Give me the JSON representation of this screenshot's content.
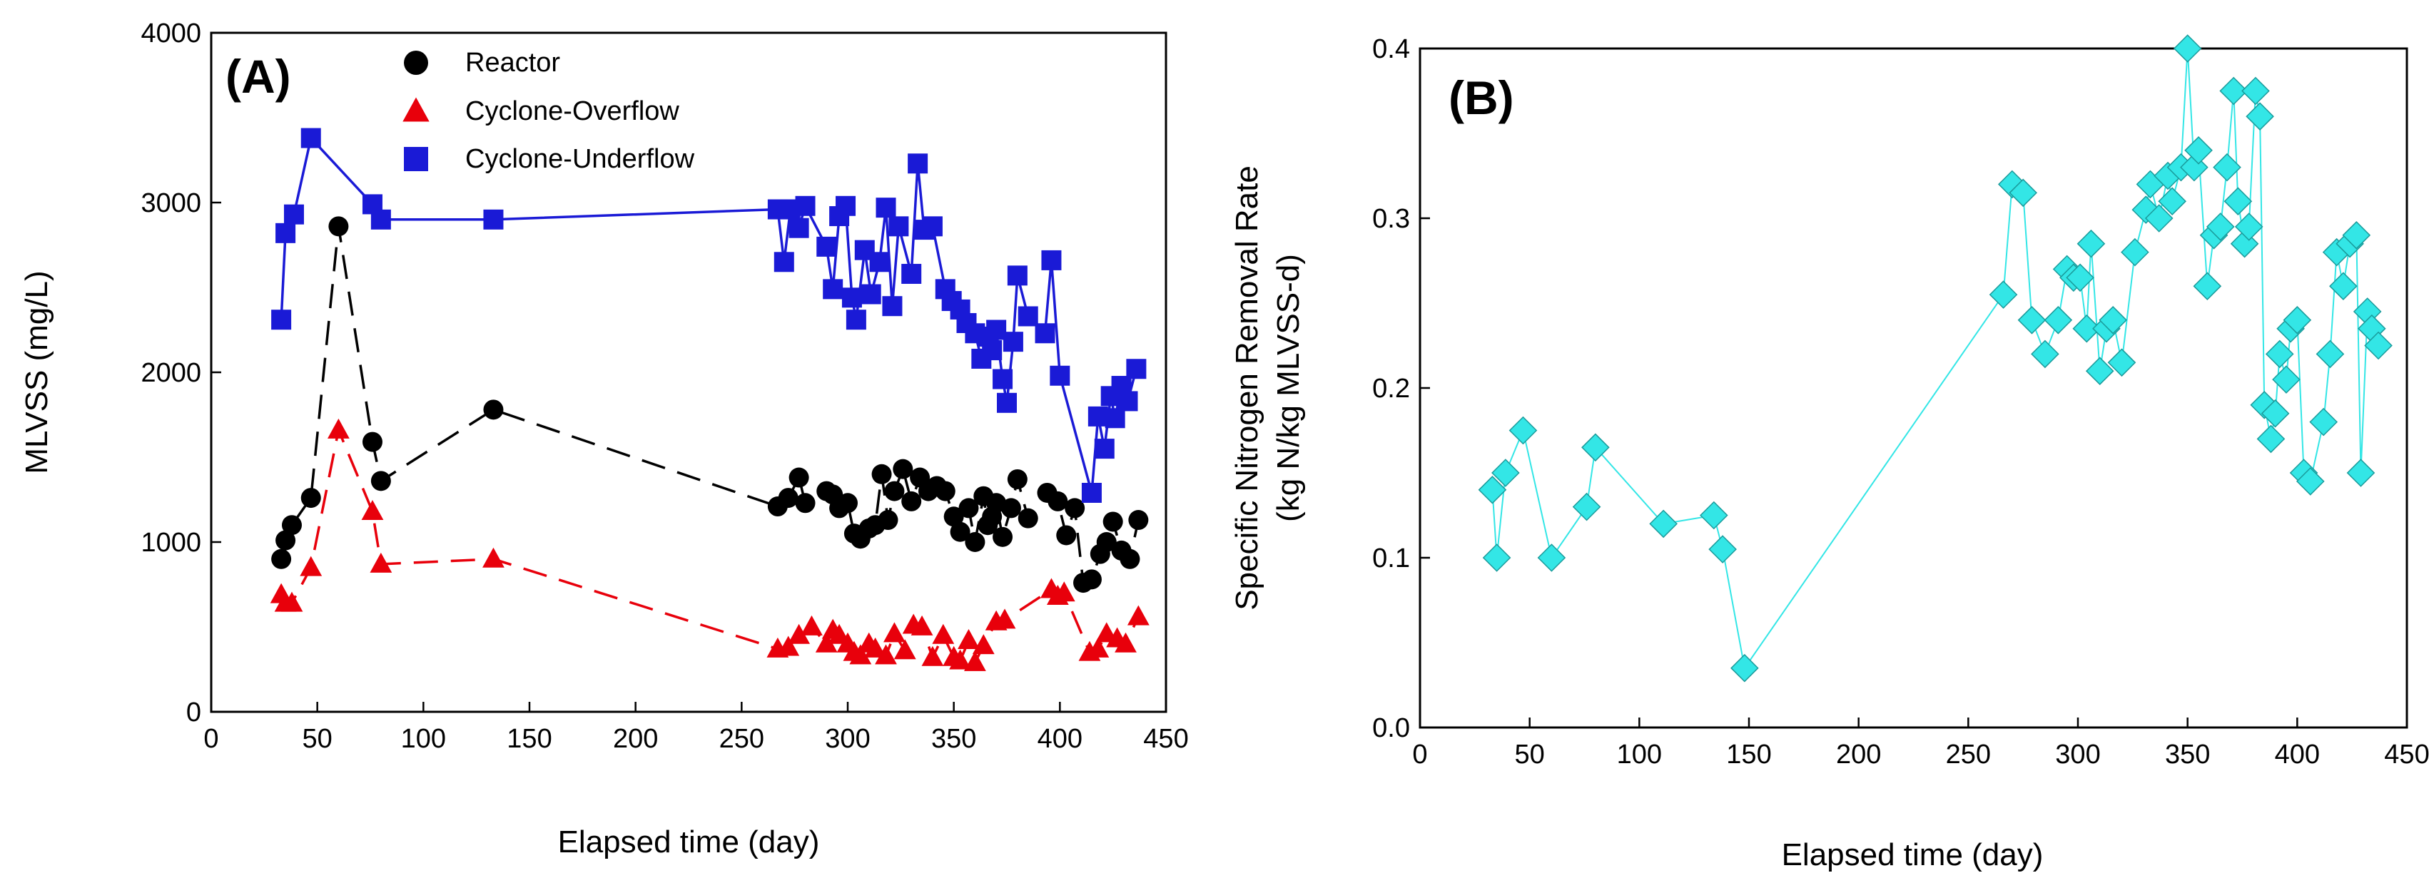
{
  "chart_data": [
    {
      "type": "scatter",
      "panel_label": "(A)",
      "xlabel": "Elapsed time (day)",
      "ylabel": "MLVSS (mg/L)",
      "xlim": [
        0,
        450
      ],
      "ylim": [
        0,
        4000
      ],
      "xticks": [
        0,
        50,
        100,
        150,
        200,
        250,
        300,
        350,
        400,
        450
      ],
      "yticks": [
        0,
        1000,
        2000,
        3000,
        4000
      ],
      "legend_position": "top-center",
      "series": [
        {
          "name": "Reactor",
          "marker": "circle",
          "color": "#000000",
          "line_style": "dashed",
          "x": [
            33,
            35,
            38,
            47,
            60,
            76,
            80,
            133,
            267,
            272,
            277,
            280,
            290,
            293,
            296,
            300,
            303,
            306,
            310,
            313,
            316,
            319,
            322,
            326,
            330,
            334,
            338,
            342,
            346,
            350,
            353,
            357,
            360,
            364,
            366,
            368,
            370,
            373,
            377,
            380,
            385,
            394,
            399,
            403,
            407,
            411,
            415,
            419,
            422,
            425,
            429,
            433,
            437
          ],
          "y": [
            900,
            1010,
            1100,
            1260,
            2860,
            1590,
            1360,
            1780,
            1210,
            1260,
            1380,
            1230,
            1300,
            1280,
            1200,
            1230,
            1050,
            1020,
            1080,
            1100,
            1400,
            1130,
            1300,
            1430,
            1240,
            1380,
            1300,
            1330,
            1300,
            1150,
            1060,
            1200,
            1000,
            1270,
            1100,
            1150,
            1230,
            1030,
            1200,
            1370,
            1140,
            1290,
            1240,
            1040,
            1200,
            760,
            780,
            930,
            1000,
            1120,
            950,
            900,
            1130
          ]
        },
        {
          "name": "Cyclone-Overflow",
          "marker": "triangle",
          "color": "#e8000b",
          "line_style": "dashed",
          "x": [
            33,
            35,
            38,
            47,
            60,
            76,
            80,
            133,
            267,
            272,
            277,
            283,
            290,
            293,
            296,
            300,
            303,
            306,
            310,
            313,
            318,
            322,
            327,
            331,
            335,
            340,
            345,
            350,
            353,
            357,
            360,
            364,
            370,
            374,
            396,
            399,
            402,
            414,
            418,
            422,
            427,
            431,
            437
          ],
          "y": [
            690,
            640,
            640,
            850,
            1660,
            1180,
            870,
            900,
            370,
            380,
            450,
            500,
            400,
            480,
            450,
            400,
            350,
            330,
            400,
            370,
            330,
            460,
            360,
            510,
            500,
            320,
            450,
            320,
            300,
            420,
            290,
            390,
            530,
            540,
            720,
            680,
            700,
            350,
            370,
            460,
            430,
            400,
            560
          ]
        },
        {
          "name": "Cyclone-Underflow",
          "marker": "square",
          "color": "#1a1ad6",
          "line_style": "solid",
          "x": [
            33,
            35,
            39,
            47,
            76,
            80,
            133,
            267,
            270,
            273,
            277,
            280,
            290,
            293,
            296,
            299,
            302,
            304,
            308,
            311,
            315,
            318,
            321,
            324,
            330,
            333,
            336,
            340,
            346,
            349,
            353,
            356,
            360,
            363,
            366,
            368,
            370,
            373,
            375,
            378,
            380,
            385,
            393,
            396,
            400,
            415,
            418,
            421,
            424,
            426,
            429,
            432,
            436
          ],
          "y": [
            2310,
            2820,
            2930,
            3380,
            2990,
            2900,
            2900,
            2960,
            2650,
            2960,
            2850,
            2980,
            2740,
            2490,
            2920,
            2980,
            2440,
            2310,
            2720,
            2460,
            2650,
            2970,
            2390,
            2860,
            2580,
            3230,
            2840,
            2860,
            2490,
            2420,
            2370,
            2290,
            2230,
            2080,
            2210,
            2130,
            2250,
            1960,
            1820,
            2180,
            2570,
            2330,
            2230,
            2660,
            1980,
            1290,
            1740,
            1550,
            1860,
            1730,
            1920,
            1830,
            2020
          ]
        }
      ]
    },
    {
      "type": "scatter",
      "panel_label": "(B)",
      "xlabel": "Elapsed time (day)",
      "ylabel_line1": "Specific Nitrogen Removal Rate",
      "ylabel_line2": "(kg N/kg MLVSS-d)",
      "xlim": [
        0,
        450
      ],
      "ylim": [
        0.0,
        0.4
      ],
      "xticks": [
        0,
        50,
        100,
        150,
        200,
        250,
        300,
        350,
        400,
        450
      ],
      "yticks": [
        "0.0",
        "0.1",
        "0.2",
        "0.3",
        "0.4"
      ],
      "series": [
        {
          "name": "Specific Nitrogen Removal Rate",
          "marker": "diamond",
          "color": "#33e6e6",
          "line_style": "solid",
          "x": [
            33,
            35,
            39,
            47,
            60,
            76,
            80,
            111,
            134,
            138,
            148,
            266,
            270,
            275,
            279,
            285,
            291,
            295,
            298,
            301,
            304,
            306,
            310,
            313,
            316,
            320,
            326,
            331,
            333,
            337,
            341,
            343,
            347,
            350,
            353,
            355,
            359,
            362,
            365,
            368,
            371,
            373,
            376,
            378,
            381,
            383,
            385,
            388,
            390,
            392,
            395,
            397,
            400,
            403,
            406,
            412,
            415,
            418,
            421,
            424,
            427,
            429,
            432,
            434,
            437
          ],
          "y": [
            0.14,
            0.1,
            0.15,
            0.175,
            0.1,
            0.13,
            0.165,
            0.12,
            0.125,
            0.105,
            0.035,
            0.255,
            0.32,
            0.315,
            0.24,
            0.22,
            0.24,
            0.27,
            0.265,
            0.265,
            0.235,
            0.285,
            0.21,
            0.235,
            0.24,
            0.215,
            0.28,
            0.305,
            0.32,
            0.3,
            0.325,
            0.31,
            0.33,
            0.4,
            0.33,
            0.34,
            0.26,
            0.29,
            0.295,
            0.33,
            0.375,
            0.31,
            0.285,
            0.295,
            0.375,
            0.36,
            0.19,
            0.17,
            0.185,
            0.22,
            0.205,
            0.235,
            0.24,
            0.15,
            0.145,
            0.18,
            0.22,
            0.28,
            0.26,
            0.285,
            0.29,
            0.15,
            0.245,
            0.235,
            0.225
          ]
        }
      ]
    }
  ]
}
